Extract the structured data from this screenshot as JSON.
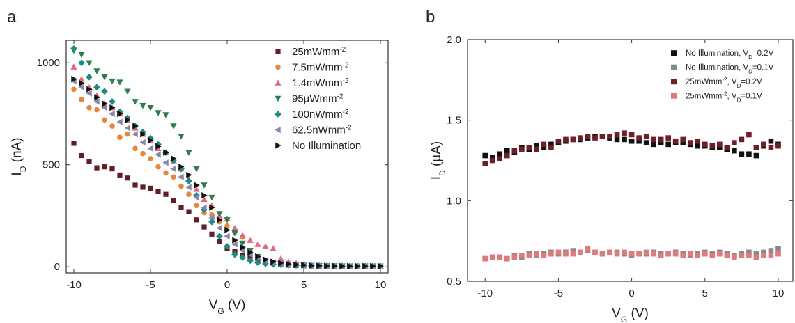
{
  "chart_data": [
    {
      "panel_label": "a",
      "type": "scatter",
      "xlabel": "V_G (V)",
      "ylabel": "I_D (nA)",
      "xlim": [
        -10.5,
        10.5
      ],
      "ylim": [
        -30,
        1110
      ],
      "xticks": [
        -10,
        -5,
        0,
        5,
        10
      ],
      "yticks": [
        0,
        500,
        1000
      ],
      "grid": false,
      "legend_position": "top-right",
      "series": [
        {
          "name": "25mWmm-2",
          "legend_parts": [
            "25mWmm",
            "-2",
            ""
          ],
          "color": "#5e1f26",
          "marker": "square",
          "x": [
            -10,
            -9.5,
            -9,
            -8.5,
            -8,
            -7.5,
            -7,
            -6.5,
            -6,
            -5.5,
            -5,
            -4.5,
            -4,
            -3.5,
            -3,
            -2.5,
            -2,
            -1.5,
            -1,
            -0.5,
            0,
            0.5,
            1,
            1.5,
            2,
            2.5,
            3,
            3.5,
            4,
            4.5,
            5,
            5.5,
            6,
            6.5,
            7,
            7.5,
            8,
            8.5,
            9,
            9.5,
            10
          ],
          "y": [
            605,
            545,
            515,
            485,
            490,
            480,
            450,
            435,
            400,
            390,
            385,
            370,
            355,
            325,
            290,
            270,
            230,
            195,
            160,
            125,
            90,
            75,
            55,
            45,
            35,
            25,
            18,
            12,
            8,
            6,
            5,
            4,
            3,
            3,
            2,
            2,
            2,
            2,
            2,
            2,
            2
          ]
        },
        {
          "name": "7.5mWmm-2",
          "legend_parts": [
            "7.5mWmm",
            "-2",
            ""
          ],
          "color": "#e8873a",
          "marker": "circle",
          "x": [
            -10,
            -9.5,
            -9,
            -8.5,
            -8,
            -7.5,
            -7,
            -6.5,
            -6,
            -5.5,
            -5,
            -4.5,
            -4,
            -3.5,
            -3,
            -2.5,
            -2,
            -1.5,
            -1,
            -0.5,
            0,
            0.5,
            1,
            1.5,
            2,
            2.5,
            3,
            3.5,
            4,
            4.5,
            5,
            5.5,
            6,
            6.5,
            7,
            7.5,
            8,
            8.5,
            9,
            9.5,
            10
          ],
          "y": [
            870,
            820,
            780,
            770,
            720,
            690,
            635,
            650,
            580,
            555,
            530,
            490,
            460,
            440,
            395,
            355,
            300,
            265,
            255,
            220,
            200,
            170,
            145,
            80,
            50,
            30,
            20,
            15,
            10,
            8,
            6,
            5,
            4,
            4,
            3,
            3,
            3,
            3,
            3,
            3,
            3
          ]
        },
        {
          "name": "1.4mWmm-2",
          "legend_parts": [
            "1.4mWmm",
            "-2",
            ""
          ],
          "color": "#e06b7c",
          "marker": "triangle-up",
          "x": [
            -10,
            -9.5,
            -9,
            -8.5,
            -8,
            -7.5,
            -7,
            -6.5,
            -6,
            -5.5,
            -5,
            -4.5,
            -4,
            -3.5,
            -3,
            -2.5,
            -2,
            -1.5,
            -1,
            -0.5,
            0,
            0.5,
            1,
            1.5,
            2,
            2.5,
            3,
            3.5,
            4,
            4.5,
            5,
            5.5,
            6,
            6.5,
            7,
            7.5,
            8,
            8.5,
            9,
            9.5,
            10
          ],
          "y": [
            980,
            920,
            880,
            840,
            800,
            780,
            750,
            720,
            680,
            650,
            620,
            580,
            560,
            520,
            480,
            430,
            380,
            330,
            300,
            250,
            235,
            190,
            155,
            130,
            110,
            100,
            90,
            40,
            25,
            18,
            12,
            10,
            8,
            6,
            5,
            5,
            4,
            4,
            3,
            3,
            3
          ]
        },
        {
          "name": "95µWmm-2",
          "legend_parts": [
            "95µWmm",
            "-2",
            ""
          ],
          "color": "#2e7d4e",
          "marker": "triangle-down",
          "x": [
            -10,
            -9.5,
            -9,
            -8.5,
            -8,
            -7.5,
            -7,
            -6.5,
            -6,
            -5.5,
            -5,
            -4.5,
            -4,
            -3.5,
            -3,
            -2.5,
            -2,
            -1.5,
            -1,
            -0.5,
            0,
            0.5,
            1,
            1.5,
            2,
            2.5,
            3,
            3.5,
            4,
            4.5,
            5,
            5.5,
            6,
            6.5,
            7,
            7.5,
            8,
            8.5,
            9,
            9.5,
            10
          ],
          "y": [
            1060,
            1040,
            1000,
            960,
            930,
            910,
            905,
            860,
            810,
            790,
            780,
            755,
            745,
            690,
            640,
            560,
            480,
            400,
            340,
            260,
            230,
            165,
            115,
            80,
            50,
            30,
            20,
            15,
            12,
            10,
            8,
            6,
            5,
            4,
            4,
            3,
            3,
            3,
            3,
            3,
            3
          ]
        },
        {
          "name": "100nWmm-2",
          "legend_parts": [
            "100nWmm",
            "-2",
            ""
          ],
          "color": "#1e8c80",
          "marker": "diamond",
          "x": [
            -10,
            -9.5,
            -9,
            -8.5,
            -8,
            -7.5,
            -7,
            -6.5,
            -6,
            -5.5,
            -5,
            -4.5,
            -4,
            -3.5,
            -3,
            -2.5,
            -2,
            -1.5,
            -1,
            -0.5,
            0,
            0.5,
            1,
            1.5,
            2,
            2.5,
            3,
            3.5,
            4,
            4.5,
            5,
            5.5,
            6,
            6.5,
            7,
            7.5,
            8,
            8.5,
            9,
            9.5,
            10
          ],
          "y": [
            1070,
            1000,
            930,
            880,
            860,
            810,
            760,
            730,
            690,
            660,
            630,
            600,
            560,
            520,
            480,
            420,
            350,
            280,
            220,
            150,
            100,
            60,
            45,
            30,
            20,
            15,
            12,
            10,
            8,
            7,
            6,
            5,
            4,
            4,
            3,
            3,
            3,
            3,
            3,
            3,
            3
          ]
        },
        {
          "name": "62.5nWmm-2",
          "legend_parts": [
            "62.5nWmm",
            "-2",
            ""
          ],
          "color": "#8a86b0",
          "marker": "triangle-left",
          "x": [
            -10,
            -9.5,
            -9,
            -8.5,
            -8,
            -7.5,
            -7,
            -6.5,
            -6,
            -5.5,
            -5,
            -4.5,
            -4,
            -3.5,
            -3,
            -2.5,
            -2,
            -1.5,
            -1,
            -0.5,
            0,
            0.5,
            1,
            1.5,
            2,
            2.5,
            3,
            3.5,
            4,
            4.5,
            5,
            5.5,
            6,
            6.5,
            7,
            7.5,
            8,
            8.5,
            9,
            9.5,
            10
          ],
          "y": [
            910,
            880,
            850,
            810,
            780,
            750,
            710,
            680,
            650,
            610,
            580,
            550,
            510,
            480,
            440,
            390,
            340,
            290,
            240,
            190,
            150,
            110,
            80,
            60,
            45,
            30,
            22,
            16,
            12,
            9,
            7,
            6,
            5,
            4,
            4,
            3,
            3,
            3,
            3,
            3,
            3
          ]
        },
        {
          "name": "No Illumination",
          "legend_parts": [
            "No Illumination",
            "",
            ""
          ],
          "color": "#111111",
          "marker": "triangle-right",
          "x": [
            -10,
            -9.5,
            -9,
            -8.5,
            -8,
            -7.5,
            -7,
            -6.5,
            -6,
            -5.5,
            -5,
            -4.5,
            -4,
            -3.5,
            -3,
            -2.5,
            -2,
            -1.5,
            -1,
            -0.5,
            0,
            0.5,
            1,
            1.5,
            2,
            2.5,
            3,
            3.5,
            4,
            4.5,
            5,
            5.5,
            6,
            6.5,
            7,
            7.5,
            8,
            8.5,
            9,
            9.5,
            10
          ],
          "y": [
            920,
            900,
            870,
            830,
            800,
            780,
            750,
            720,
            690,
            650,
            620,
            590,
            560,
            530,
            490,
            450,
            400,
            350,
            290,
            230,
            180,
            130,
            95,
            70,
            50,
            35,
            25,
            18,
            13,
            10,
            8,
            6,
            5,
            4,
            4,
            3,
            3,
            3,
            3,
            3,
            3
          ]
        }
      ]
    },
    {
      "panel_label": "b",
      "type": "scatter",
      "xlabel": "V_G (V)",
      "ylabel": "I_D (µA)",
      "xlim": [
        -11.2,
        11
      ],
      "ylim": [
        0.5,
        2.0
      ],
      "xticks": [
        -10,
        -5,
        0,
        5,
        10
      ],
      "yticks": [
        0.5,
        1.0,
        1.5,
        2.0
      ],
      "ytick_labels": [
        "0.5",
        "1.0",
        "1.5",
        "2.0"
      ],
      "grid": false,
      "legend_position": "top-right",
      "series": [
        {
          "name": "No Illumination, VD=0.2V",
          "legend_parts": [
            "No Illumination, V",
            "D",
            "=0.2V"
          ],
          "color": "#111111",
          "marker": "square",
          "x": [
            -10,
            -9.5,
            -9,
            -8.5,
            -8,
            -7.5,
            -7,
            -6.5,
            -6,
            -5.5,
            -5,
            -4.5,
            -4,
            -3.5,
            -3,
            -2.5,
            -2,
            -1.5,
            -1,
            -0.5,
            0,
            0.5,
            1,
            1.5,
            2,
            2.5,
            3,
            3.5,
            4,
            4.5,
            5,
            5.5,
            6,
            6.5,
            7,
            7.5,
            8,
            8.5,
            9,
            9.5,
            10
          ],
          "y": [
            1.28,
            1.27,
            1.29,
            1.31,
            1.3,
            1.33,
            1.32,
            1.34,
            1.33,
            1.35,
            1.36,
            1.37,
            1.38,
            1.38,
            1.39,
            1.4,
            1.4,
            1.39,
            1.38,
            1.38,
            1.37,
            1.37,
            1.36,
            1.35,
            1.36,
            1.35,
            1.36,
            1.36,
            1.35,
            1.34,
            1.34,
            1.33,
            1.33,
            1.32,
            1.31,
            1.29,
            1.29,
            1.28,
            1.34,
            1.37,
            1.35
          ]
        },
        {
          "name": "No Illumination, VD=0.1V",
          "legend_parts": [
            "No Illumination, V",
            "D",
            "=0.1V"
          ],
          "color": "#8a8a8a",
          "marker": "square",
          "x": [
            -10,
            -9.5,
            -9,
            -8.5,
            -8,
            -7.5,
            -7,
            -6.5,
            -6,
            -5.5,
            -5,
            -4.5,
            -4,
            -3.5,
            -3,
            -2.5,
            -2,
            -1.5,
            -1,
            -0.5,
            0,
            0.5,
            1,
            1.5,
            2,
            2.5,
            3,
            3.5,
            4,
            4.5,
            5,
            5.5,
            6,
            6.5,
            7,
            7.5,
            8,
            8.5,
            9,
            9.5,
            10
          ],
          "y": [
            0.64,
            0.65,
            0.65,
            0.64,
            0.66,
            0.65,
            0.67,
            0.66,
            0.67,
            0.68,
            0.67,
            0.68,
            0.69,
            0.68,
            0.69,
            0.68,
            0.67,
            0.68,
            0.68,
            0.67,
            0.66,
            0.67,
            0.67,
            0.68,
            0.67,
            0.67,
            0.68,
            0.67,
            0.66,
            0.67,
            0.68,
            0.67,
            0.68,
            0.67,
            0.66,
            0.67,
            0.68,
            0.67,
            0.68,
            0.69,
            0.7
          ]
        },
        {
          "name": "25mWmm-2, VD=0.2V",
          "legend_parts": [
            "25mWmm",
            "-2",
            ", V",
            "D",
            "=0.2V"
          ],
          "color": "#6e1f2a",
          "marker": "square",
          "x": [
            -10,
            -9.5,
            -9,
            -8.5,
            -8,
            -7.5,
            -7,
            -6.5,
            -6,
            -5.5,
            -5,
            -4.5,
            -4,
            -3.5,
            -3,
            -2.5,
            -2,
            -1.5,
            -1,
            -0.5,
            0,
            0.5,
            1,
            1.5,
            2,
            2.5,
            3,
            3.5,
            4,
            4.5,
            5,
            5.5,
            6,
            6.5,
            7,
            7.5,
            8,
            8.5,
            9,
            9.5,
            10
          ],
          "y": [
            1.23,
            1.25,
            1.26,
            1.28,
            1.31,
            1.32,
            1.33,
            1.32,
            1.35,
            1.33,
            1.37,
            1.38,
            1.38,
            1.39,
            1.4,
            1.39,
            1.4,
            1.4,
            1.41,
            1.42,
            1.41,
            1.39,
            1.4,
            1.38,
            1.38,
            1.39,
            1.37,
            1.38,
            1.36,
            1.37,
            1.35,
            1.34,
            1.35,
            1.33,
            1.36,
            1.38,
            1.41,
            1.33,
            1.35,
            1.33,
            1.34
          ]
        },
        {
          "name": "25mWmm-2, VD=0.1V",
          "legend_parts": [
            "25mWmm",
            "-2",
            ", V",
            "D",
            "=0.1V"
          ],
          "color": "#e07a7f",
          "marker": "square",
          "x": [
            -10,
            -9.5,
            -9,
            -8.5,
            -8,
            -7.5,
            -7,
            -6.5,
            -6,
            -5.5,
            -5,
            -4.5,
            -4,
            -3.5,
            -3,
            -2.5,
            -2,
            -1.5,
            -1,
            -0.5,
            0,
            0.5,
            1,
            1.5,
            2,
            2.5,
            3,
            3.5,
            4,
            4.5,
            5,
            5.5,
            6,
            6.5,
            7,
            7.5,
            8,
            8.5,
            9,
            9.5,
            10
          ],
          "y": [
            0.64,
            0.65,
            0.65,
            0.64,
            0.65,
            0.66,
            0.66,
            0.67,
            0.66,
            0.67,
            0.68,
            0.67,
            0.67,
            0.68,
            0.7,
            0.68,
            0.67,
            0.68,
            0.67,
            0.68,
            0.67,
            0.67,
            0.68,
            0.67,
            0.66,
            0.67,
            0.67,
            0.66,
            0.67,
            0.66,
            0.67,
            0.66,
            0.67,
            0.66,
            0.65,
            0.66,
            0.66,
            0.65,
            0.66,
            0.66,
            0.67
          ]
        }
      ]
    }
  ]
}
